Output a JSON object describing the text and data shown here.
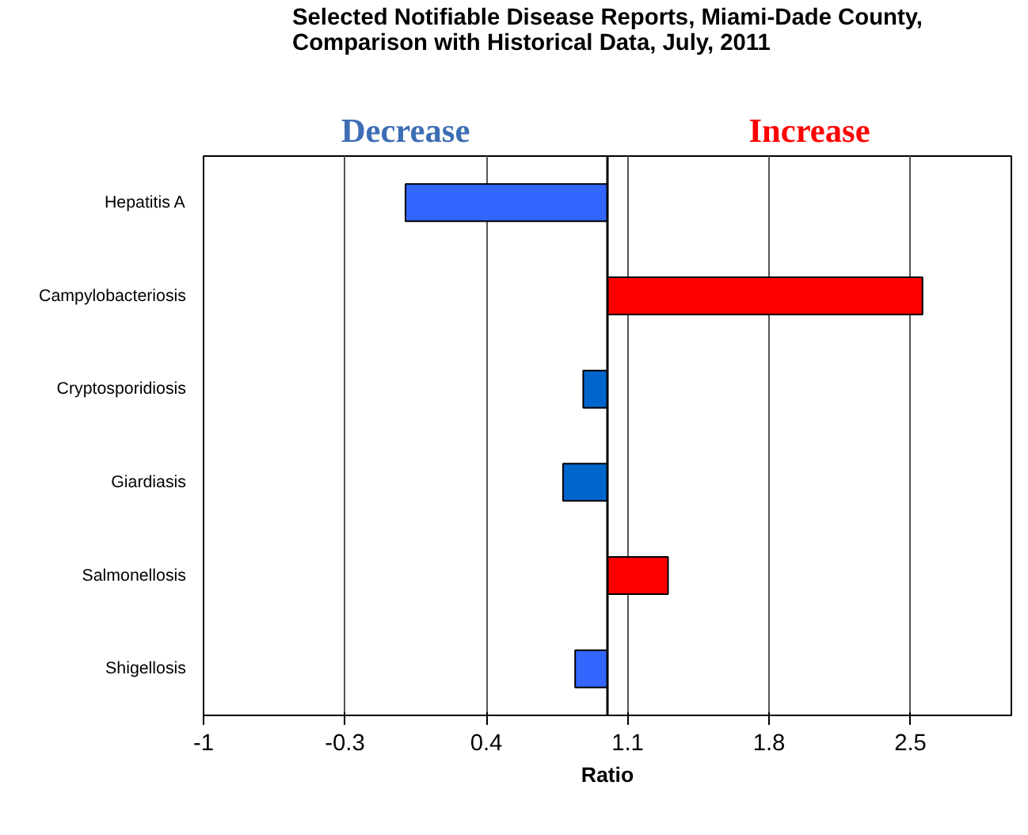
{
  "chart_data": {
    "type": "bar",
    "orientation": "horizontal",
    "title": "Selected Notifiable Disease Reports, Miami-Dade County, Comparison with Historical Data, July, 2011",
    "xlabel": "Ratio",
    "annotations": [
      "Decrease",
      "Increase"
    ],
    "categories": [
      "Hepatitis A",
      "Campylobacteriosis",
      "Cryptosporidiosis",
      "Giardiasis",
      "Salmonellosis",
      "Shigellosis"
    ],
    "base": [
      1,
      1,
      1,
      1,
      1,
      1
    ],
    "values": [
      -1.0,
      1.56,
      -0.12,
      -0.22,
      0.3,
      -0.16
    ],
    "colors": [
      "#3366ff",
      "#ff0000",
      "#0066cc",
      "#0066cc",
      "#ff0000",
      "#3366ff"
    ],
    "xlim": [
      -1,
      3
    ],
    "xticks": [
      -1,
      -0.3,
      0.4,
      1.1,
      1.8,
      2.5
    ],
    "ref_lines": [
      {
        "axis": "x",
        "value": 1,
        "color": "#000000"
      }
    ],
    "grid": "x"
  }
}
